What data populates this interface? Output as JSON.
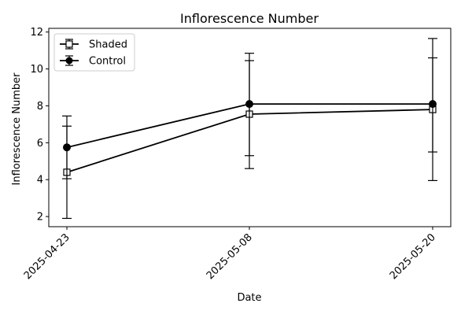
{
  "chart_data": {
    "type": "line",
    "title": "Inflorescence Number",
    "xlabel": "Date",
    "ylabel": "Inflorescence Number",
    "x": [
      "2025-04-23",
      "2025-05-08",
      "2025-05-20"
    ],
    "ylim": [
      1.45,
      12.2
    ],
    "yticks": [
      2,
      4,
      6,
      8,
      10,
      12
    ],
    "grid": false,
    "legend_position": "upper-left",
    "series": [
      {
        "name": "Shaded",
        "marker": "square-open",
        "color": "#000000",
        "values": [
          4.4,
          7.55,
          7.8
        ],
        "err_low": [
          1.9,
          4.6,
          3.95
        ],
        "err_high": [
          6.9,
          10.45,
          11.65
        ]
      },
      {
        "name": "Control",
        "marker": "circle-filled",
        "color": "#000000",
        "values": [
          5.75,
          8.1,
          8.1
        ],
        "err_low": [
          4.05,
          5.3,
          5.5
        ],
        "err_high": [
          7.45,
          10.85,
          10.6
        ]
      }
    ]
  }
}
